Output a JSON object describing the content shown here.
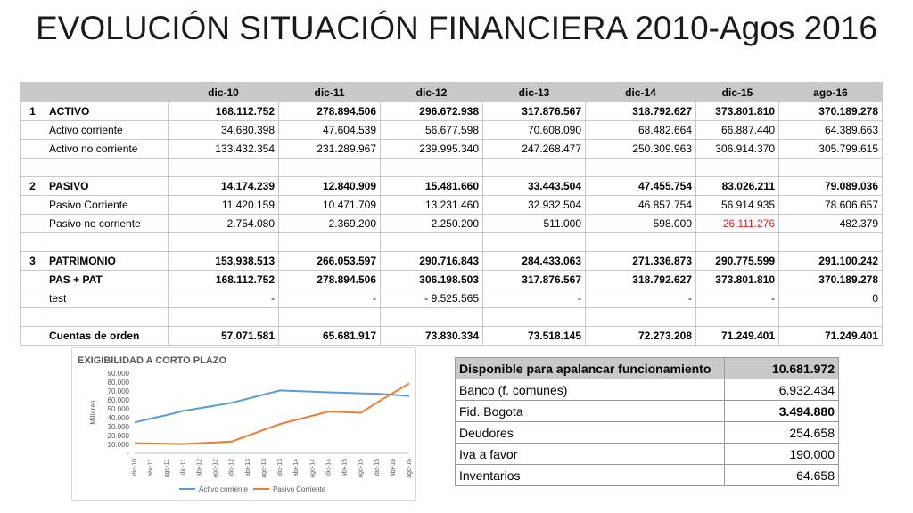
{
  "title": "EVOLUCIÓN SITUACIÓN FINANCIERA 2010-Agos 2016",
  "main_table": {
    "headers": [
      "",
      "",
      "dic-10",
      "dic-11",
      "dic-12",
      "dic-13",
      "dic-14",
      "dic-15",
      "ago-16"
    ],
    "rows": [
      {
        "idx": "1",
        "label": "ACTIVO",
        "bold": true,
        "values": [
          "168.112.752",
          "278.894.506",
          "296.672.938",
          "317.876.567",
          "318.792.627",
          "373.801.810",
          "370.189.278"
        ]
      },
      {
        "idx": "",
        "label": "Activo corriente",
        "values": [
          "34.680.398",
          "47.604.539",
          "56.677.598",
          "70.608.090",
          "68.482.664",
          "66.887.440",
          "64.389.663"
        ]
      },
      {
        "idx": "",
        "label": "Activo no corriente",
        "values": [
          "133.432.354",
          "231.289.967",
          "239.995.340",
          "247.268.477",
          "250.309.963",
          "306.914.370",
          "305.799.615"
        ]
      },
      {
        "idx": "",
        "label": "",
        "values": [
          "",
          "",
          "",
          "",
          "",
          "",
          ""
        ]
      },
      {
        "idx": "2",
        "label": "PASIVO",
        "bold": true,
        "values": [
          "14.174.239",
          "12.840.909",
          "15.481.660",
          "33.443.504",
          "47.455.754",
          "83.026.211",
          "79.089.036"
        ]
      },
      {
        "idx": "",
        "label": "Pasivo Corriente",
        "values": [
          "11.420.159",
          "10.471.709",
          "13.231.460",
          "32.932.504",
          "46.857.754",
          "56.914.935",
          "78.606.657"
        ]
      },
      {
        "idx": "",
        "label": "Pasivo no corriente",
        "values": [
          "2.754.080",
          "2.369.200",
          "2.250.200",
          "511.000",
          "598.000",
          "26.111.276",
          "482.379"
        ]
      },
      {
        "idx": "",
        "label": "",
        "values": [
          "",
          "",
          "",
          "",
          "",
          "",
          ""
        ]
      },
      {
        "idx": "3",
        "label": "PATRIMONIO",
        "bold": true,
        "values": [
          "153.938.513",
          "266.053.597",
          "290.716.843",
          "284.433.063",
          "271.336.873",
          "290.775.599",
          "291.100.242"
        ]
      },
      {
        "idx": "",
        "label": "PAS + PAT",
        "bold": true,
        "values": [
          "168.112.752",
          "278.894.506",
          "306.198.503",
          "317.876.567",
          "318.792.627",
          "373.801.810",
          "370.189.278"
        ]
      },
      {
        "idx": "",
        "label": "test",
        "values": [
          "-",
          "-",
          "-   9.525.565",
          "-",
          "-",
          "-",
          "0"
        ]
      },
      {
        "idx": "",
        "label": "",
        "values": [
          "",
          "",
          "",
          "",
          "",
          "",
          ""
        ]
      },
      {
        "idx": "",
        "label": "Cuentas de orden",
        "bold": true,
        "values": [
          "57.071.581",
          "65.681.917",
          "73.830.334",
          "73.518.145",
          "72.273.208",
          "71.249.401",
          "71.249.401"
        ]
      }
    ],
    "red_value": "26.111.276"
  },
  "side_table": {
    "header": {
      "label": "Disponible para apalancar funcionamiento",
      "value": "10.681.972"
    },
    "rows": [
      {
        "label": "Banco (f. comunes)",
        "value": "6.932.434"
      },
      {
        "label": "Fid. Bogota",
        "value": "3.494.880",
        "bold": true
      },
      {
        "label": "Deudores",
        "value": "254.658"
      },
      {
        "label": "Iva a favor",
        "value": "190.000"
      },
      {
        "label": "Inventarios",
        "value": "64.658"
      }
    ]
  },
  "chart_data": {
    "type": "line",
    "title": "EXIGIBILIDAD A CORTO PLAZO",
    "ylabel": "Millares",
    "ylim": [
      0,
      90000
    ],
    "yticks": [
      "-",
      "10.000",
      "20.000",
      "30.000",
      "40.000",
      "50.000",
      "60.000",
      "70.000",
      "80.000",
      "90.000"
    ],
    "x": [
      "dic-10",
      "abr-11",
      "ago-11",
      "dic-11",
      "abr-12",
      "ago-12",
      "dic-12",
      "abr-13",
      "ago-13",
      "dic-13",
      "abr-14",
      "ago-14",
      "dic-14",
      "abr-15",
      "ago-15",
      "dic-15",
      "abr-16",
      "ago-16"
    ],
    "series": [
      {
        "name": "Activo corriente",
        "color": "#5b9bd5",
        "values": [
          34680,
          39000,
          43000,
          47605,
          50600,
          53600,
          56678,
          61300,
          66000,
          70608,
          69900,
          69200,
          68483,
          67950,
          67400,
          66887,
          65700,
          64390
        ]
      },
      {
        "name": "Pasivo Corriente",
        "color": "#ed7d31",
        "values": [
          11420,
          11100,
          10800,
          10472,
          11400,
          12300,
          13231,
          19800,
          26400,
          32933,
          37600,
          42200,
          46858,
          46200,
          45500,
          56915,
          67800,
          78607
        ]
      }
    ],
    "legend": "bottom"
  }
}
